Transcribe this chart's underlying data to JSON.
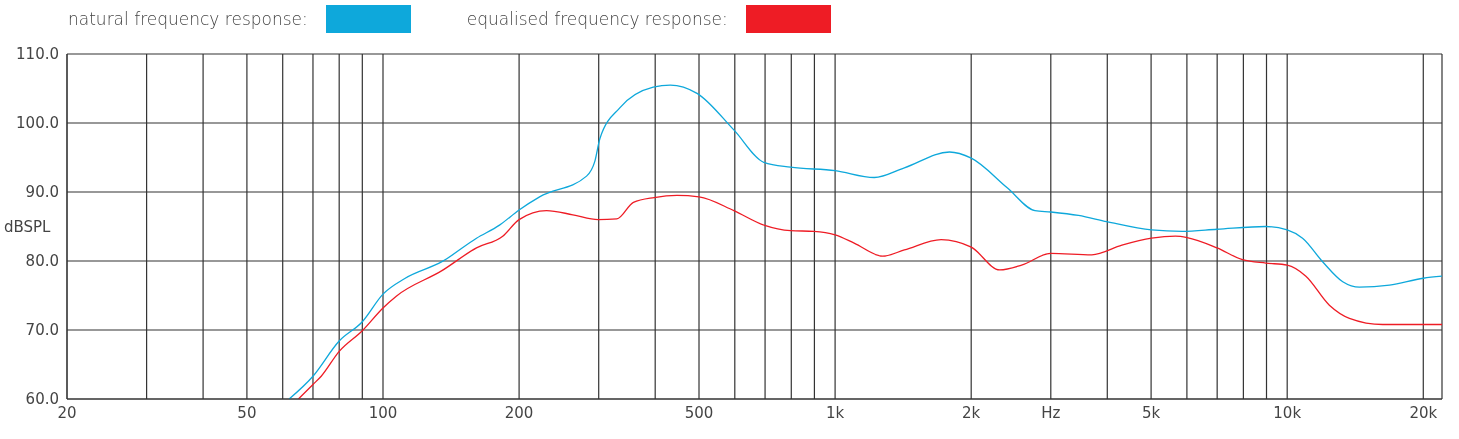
{
  "chart_data": {
    "type": "line",
    "ylabel": "dBSPL",
    "log": "x",
    "grid": true,
    "legend": "top left",
    "xlim": [
      20,
      22000
    ],
    "ylim": [
      60,
      110
    ],
    "xticks": [
      20,
      {
        "value": 30,
        "label": null
      },
      {
        "value": 40,
        "label": null
      },
      50,
      {
        "value": 60,
        "label": null
      },
      {
        "value": 70,
        "label": null
      },
      {
        "value": 80,
        "label": null
      },
      {
        "value": 90,
        "label": null
      },
      100,
      200,
      {
        "value": 300,
        "label": null
      },
      {
        "value": 400,
        "label": null
      },
      500,
      {
        "value": 600,
        "label": null
      },
      {
        "value": 700,
        "label": null
      },
      {
        "value": 800,
        "label": null
      },
      {
        "value": 900,
        "label": null
      },
      {
        "value": 1000,
        "label": "1k"
      },
      {
        "value": 2000,
        "label": "2k"
      },
      {
        "value": 3000,
        "label": "Hz"
      },
      {
        "value": 4000,
        "label": null
      },
      {
        "value": 5000,
        "label": "5k"
      },
      {
        "value": 6000,
        "label": null
      },
      {
        "value": 7000,
        "label": null
      },
      {
        "value": 8000,
        "label": null
      },
      {
        "value": 9000,
        "label": null
      },
      {
        "value": 10000,
        "label": "10k"
      },
      {
        "value": 20000,
        "label": "20k"
      }
    ],
    "yticks": [
      {
        "value": 60,
        "label": "60.0"
      },
      {
        "value": 70,
        "label": "70.0"
      },
      {
        "value": 80,
        "label": "80.0"
      },
      {
        "value": 90,
        "label": "90.0"
      },
      {
        "value": 100,
        "label": "100.0"
      },
      {
        "value": 110,
        "label": "110.0"
      }
    ],
    "series": [
      {
        "name": "natural frequency response:",
        "color": "#0ea8db",
        "x": [
          62,
          70,
          80,
          90,
          100,
          112,
          135,
          161,
          181,
          200,
          222,
          282,
          294,
          302,
          334,
          396,
          432,
          495,
          597,
          696,
          797,
          1000,
          1221,
          1423,
          1791,
          2001,
          2403,
          2767,
          3000,
          3454,
          3990,
          5010,
          5858,
          6996,
          8971,
          10000,
          10815,
          11976,
          13270,
          14450,
          16840,
          20000,
          22000
        ],
        "values": [
          60,
          63.3,
          68.4,
          71.2,
          75.2,
          77.5,
          79.9,
          83.3,
          85.2,
          87.4,
          89.3,
          92.3,
          94.4,
          97.8,
          102.2,
          105.2,
          105.5,
          104.3,
          99,
          94.3,
          93.6,
          93.1,
          92.1,
          93.5,
          95.8,
          94.9,
          90.6,
          87.3,
          87.1,
          86.6,
          85.7,
          84.5,
          84.3,
          84.6,
          85,
          84.5,
          83.3,
          79.9,
          77,
          76.2,
          76.5,
          77.5,
          77.8
        ]
      },
      {
        "name": "equalised frequency response:",
        "color": "#ee1c25",
        "x": [
          65,
          70,
          73,
          80,
          90,
          100,
          107,
          135,
          161,
          184,
          200,
          230,
          263,
          299,
          329,
          358,
          398,
          447,
          500,
          597,
          696,
          797,
          898,
          1000,
          1102,
          1274,
          1423,
          1716,
          2001,
          2313,
          2585,
          3000,
          3697,
          4310,
          5010,
          5658,
          6008,
          6996,
          7962,
          8971,
          10000,
          11000,
          12396,
          13730,
          16270,
          22000
        ],
        "values": [
          60,
          62.1,
          63.3,
          66.9,
          69.9,
          73.2,
          74.9,
          78.6,
          81.9,
          83.6,
          86,
          87.3,
          86.7,
          86,
          86.1,
          88.5,
          89.2,
          89.5,
          89.3,
          87.3,
          85.2,
          84.4,
          84.3,
          83.8,
          82.6,
          80.7,
          81.6,
          83.1,
          82,
          78.7,
          79.4,
          81.1,
          80.9,
          82.3,
          83.3,
          83.6,
          83.4,
          81.9,
          80.2,
          79.7,
          79.4,
          77.8,
          73.6,
          71.7,
          70.8,
          70.8
        ]
      }
    ]
  }
}
